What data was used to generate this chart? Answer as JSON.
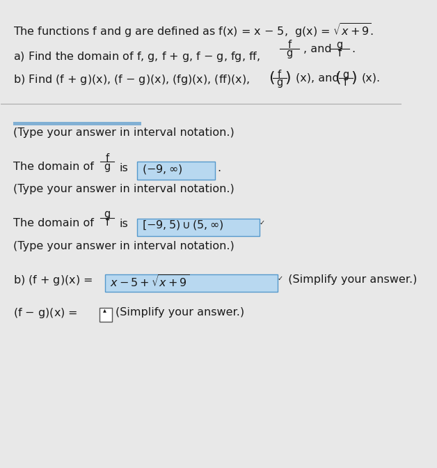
{
  "bg_color": "#e8e8e8",
  "text_color": "#1a1a1a",
  "highlight_color": "#7ab8e8",
  "highlight_alpha": 0.55,
  "title_line": "The functions f and g are defined as f(x) = x − 5,  g(x) = √x + 9.",
  "part_a": "a) Find the domain of f, g, f + g, f − g, fg, ff,",
  "part_a2_left": "f",
  "part_a2_right": "g",
  "part_a2_denom_left": "g",
  "part_a2_denom_right": "f",
  "part_a2_and": ", and",
  "part_b": "b) Find (f + g)(x), (f − g)(x), (fg)(x), (ff)(x),",
  "type_interval": "(Type your answer in interval notation.)",
  "domain_fg_line1": "The domain of",
  "domain_fg_f": "f",
  "domain_fg_g": "g",
  "domain_fg_is": "is",
  "domain_fg_value": "(−9, ∞)",
  "domain_gf_line1": "The domain of",
  "domain_gf_g": "g",
  "domain_gf_f": "f",
  "domain_gf_is": "is",
  "domain_gf_value": "[−9,5)∪(5, ∞)",
  "b_result1_prefix": "b) (f + g)(x) = ",
  "b_result1_value": "x − 5 + √x + 9",
  "b_result1_suffix": " (Simplify your answer.)",
  "b_result2_prefix": "(f − g)(x) =",
  "b_result2_suffix": "(Simplify your answer.)",
  "overline_positions": [
    [
      0.435,
      0.698,
      0.065,
      0.005
    ]
  ]
}
